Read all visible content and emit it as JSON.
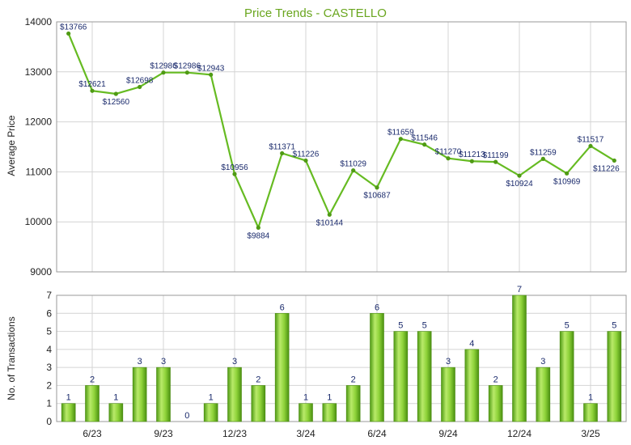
{
  "chart_data": [
    {
      "type": "line",
      "title": "Price Trends - CASTELLO",
      "ylabel": "Average Price",
      "ylim": [
        9000,
        14000
      ],
      "yticks": [
        "9000",
        "10000",
        "11000",
        "12000",
        "13000",
        "14000"
      ],
      "grid": true,
      "color": "#66bb22",
      "values": [
        13766,
        12621,
        12560,
        12698,
        12986,
        12986,
        12943,
        10956,
        9884,
        11371,
        11226,
        10144,
        11029,
        10687,
        11659,
        11546,
        11270,
        11213,
        11199,
        10924,
        11259,
        10969,
        11517,
        11226
      ],
      "data_labels": [
        "$13766",
        "$12621",
        "$12560",
        "$12698",
        "$12986",
        "$12986",
        "$12943",
        "$10956",
        "$9884",
        "$11371",
        "$11226",
        "$10144",
        "$11029",
        "$10687",
        "$11659",
        "$11546",
        "$11270",
        "$11213",
        "$11199",
        "$10924",
        "$11259",
        "$10969",
        "$11517",
        "$11226"
      ]
    },
    {
      "type": "bar",
      "ylabel": "No. of Transactions",
      "ylim": [
        0,
        7
      ],
      "yticks": [
        "0",
        "1",
        "2",
        "3",
        "4",
        "5",
        "6",
        "7"
      ],
      "grid": true,
      "color": "#66bb22",
      "values": [
        1,
        2,
        1,
        3,
        3,
        0,
        1,
        3,
        2,
        6,
        1,
        1,
        2,
        6,
        5,
        5,
        3,
        4,
        2,
        7,
        3,
        5,
        1,
        5
      ],
      "data_labels": [
        "1",
        "2",
        "1",
        "3",
        "3",
        "0",
        "1",
        "3",
        "2",
        "6",
        "1",
        "1",
        "2",
        "6",
        "5",
        "5",
        "3",
        "4",
        "2",
        "7",
        "3",
        "5",
        "1",
        "5"
      ],
      "x_tick_labels": [
        "6/23",
        "9/23",
        "12/23",
        "3/24",
        "6/24",
        "9/24",
        "12/24",
        "3/25"
      ]
    }
  ]
}
